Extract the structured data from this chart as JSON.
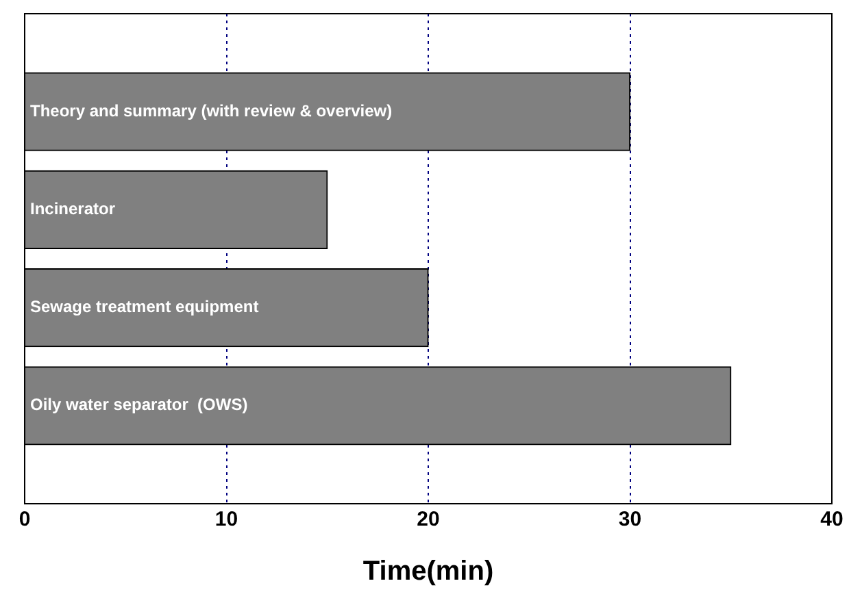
{
  "chart_data": {
    "type": "bar",
    "orientation": "horizontal",
    "xlabel": "Time(min)",
    "categories": [
      "Theory and summary (with review & overview)",
      "Incinerator",
      "Sewage treatment equipment",
      "Oily water separator  (OWS)"
    ],
    "values": [
      30,
      15,
      20,
      35
    ],
    "color": "#808080",
    "xlim": [
      0,
      40
    ],
    "xticks": [
      0,
      10,
      20,
      30,
      40
    ],
    "grid": "x",
    "legend": false
  }
}
